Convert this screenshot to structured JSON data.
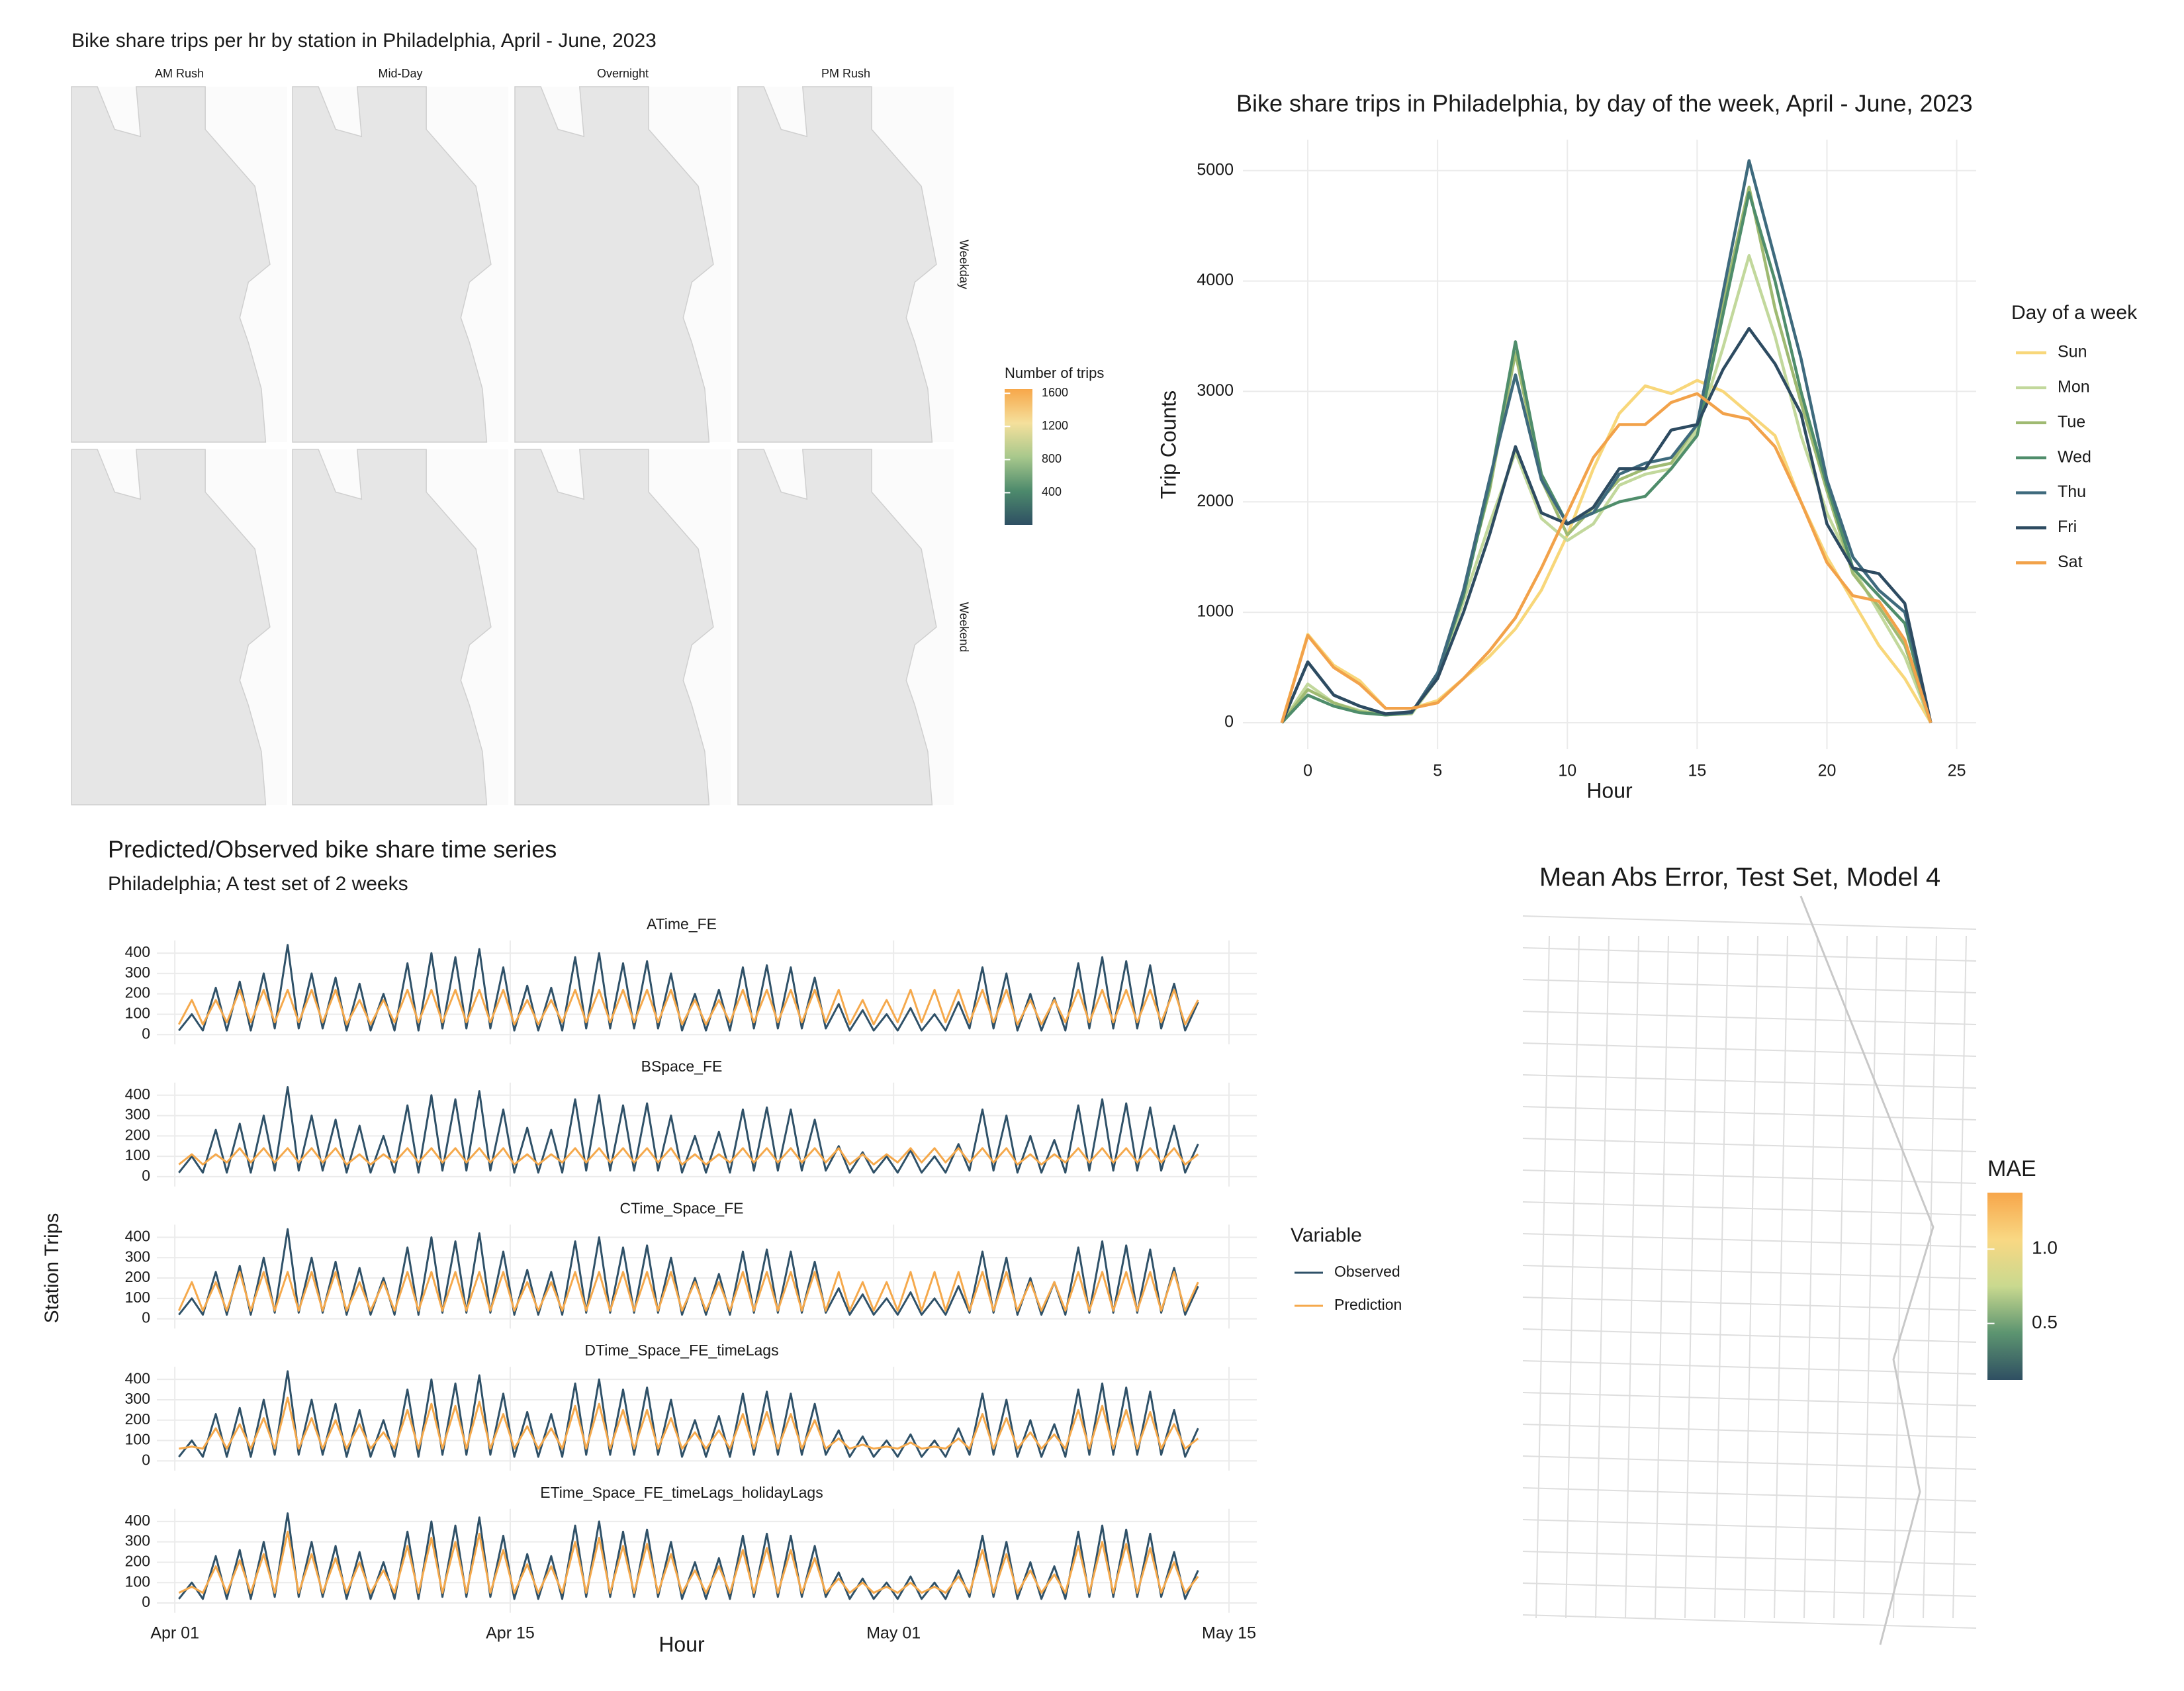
{
  "chart_data": [
    {
      "type": "map",
      "title": "Bike share trips per hr by station in Philadelphia, April - June, 2023",
      "facet_cols": [
        "AM Rush",
        "Mid-Day",
        "Overnight",
        "PM Rush"
      ],
      "facet_rows": [
        "Weekday",
        "Weekend"
      ],
      "map_color": "#e6e6e6",
      "legend_title": "Number of trips",
      "legend_ticks": [
        400,
        800,
        1200,
        1600
      ],
      "legend_lim": [
        12,
        1650
      ],
      "colors": [
        "#2e4f63",
        "#4d8a6c",
        "#a8c88c",
        "#f5e09c",
        "#f7a74a"
      ]
    },
    {
      "type": "line",
      "title": "Bike share trips in Philadelphia, by day of the week, April - June, 2023",
      "xlabel": "Hour",
      "ylabel": "Trip Counts",
      "legend_title": "Day of a week",
      "legend": "right",
      "grid": true,
      "xlim": [
        -2.5,
        25.75
      ],
      "ylim": [
        -240,
        5280
      ],
      "xticks": [
        0,
        5,
        10,
        15,
        20,
        25
      ],
      "yticks": [
        0,
        1000,
        2000,
        3000,
        4000,
        5000
      ],
      "x": [
        -1,
        0,
        1,
        2,
        3,
        4,
        5,
        6,
        7,
        8,
        9,
        10,
        11,
        12,
        13,
        14,
        15,
        16,
        17,
        18,
        19,
        20,
        21,
        22,
        23,
        24
      ],
      "series": [
        {
          "name": "Sun",
          "color": "#f8d77a",
          "values": [
            0,
            800,
            520,
            380,
            130,
            130,
            200,
            400,
            600,
            850,
            1200,
            1700,
            2300,
            2800,
            3050,
            2980,
            3100,
            3000,
            2800,
            2600,
            2000,
            1500,
            1100,
            700,
            400,
            0
          ]
        },
        {
          "name": "Mon",
          "color": "#c2d89c",
          "values": [
            0,
            350,
            180,
            110,
            70,
            80,
            400,
            1100,
            1800,
            2450,
            1850,
            1650,
            1800,
            2150,
            2250,
            2300,
            2650,
            3400,
            4230,
            3500,
            2600,
            1900,
            1400,
            1000,
            600,
            0
          ]
        },
        {
          "name": "Tue",
          "color": "#9fba72",
          "values": [
            0,
            300,
            180,
            100,
            70,
            90,
            430,
            1200,
            2100,
            3350,
            2200,
            1700,
            1950,
            2200,
            2300,
            2350,
            2700,
            3800,
            4850,
            3750,
            2900,
            2100,
            1350,
            1050,
            700,
            0
          ]
        },
        {
          "name": "Wed",
          "color": "#4f8d6b",
          "values": [
            0,
            250,
            150,
            90,
            70,
            90,
            440,
            1150,
            2150,
            3450,
            2250,
            1800,
            1900,
            2000,
            2050,
            2300,
            2600,
            3700,
            4800,
            4000,
            3000,
            2150,
            1400,
            1150,
            900,
            0
          ]
        },
        {
          "name": "Thu",
          "color": "#3e6a7d",
          "values": [
            0,
            550,
            250,
            150,
            80,
            90,
            450,
            1200,
            2200,
            3150,
            2200,
            1800,
            1900,
            2250,
            2350,
            2400,
            2700,
            3900,
            5090,
            4200,
            3300,
            2200,
            1500,
            1200,
            1000,
            0
          ]
        },
        {
          "name": "Fri",
          "color": "#2d4b61",
          "values": [
            0,
            550,
            250,
            150,
            80,
            100,
            400,
            1000,
            1700,
            2500,
            1900,
            1800,
            1950,
            2300,
            2300,
            2650,
            2700,
            3200,
            3570,
            3250,
            2800,
            1800,
            1400,
            1350,
            1080,
            0
          ]
        },
        {
          "name": "Sat",
          "color": "#f2a24a",
          "values": [
            0,
            790,
            500,
            350,
            130,
            130,
            180,
            400,
            650,
            950,
            1400,
            1900,
            2400,
            2700,
            2700,
            2900,
            2980,
            2800,
            2750,
            2500,
            2000,
            1450,
            1150,
            1100,
            750,
            0
          ]
        }
      ]
    },
    {
      "type": "facet_line",
      "title": "Predicted/Observed bike share time series",
      "subtitle": "Philadelphia; A test set of 2 weeks",
      "xlabel": "Hour",
      "ylabel": "Station Trips",
      "legend_title": "Variable",
      "grid": true,
      "xlim": [
        -0.75,
        45.16
      ],
      "ylim": [
        -48,
        462
      ],
      "xticks": [
        {
          "value": 0,
          "label": "Apr 01"
        },
        {
          "value": 14,
          "label": "Apr 15"
        },
        {
          "value": 30,
          "label": "May 01"
        },
        {
          "value": 44,
          "label": "May 15"
        }
      ],
      "yticks": [
        0,
        100,
        200,
        300,
        400
      ],
      "x": [
        0.17,
        0.71,
        1.17,
        1.71,
        2.17,
        2.71,
        3.17,
        3.71,
        4.17,
        4.71,
        5.17,
        5.71,
        6.17,
        6.71,
        7.17,
        7.71,
        8.17,
        8.71,
        9.17,
        9.71,
        10.17,
        10.71,
        11.17,
        11.71,
        12.17,
        12.71,
        13.17,
        13.71,
        14.17,
        14.71,
        15.17,
        15.71,
        16.17,
        16.71,
        17.17,
        17.71,
        18.17,
        18.71,
        19.17,
        19.71,
        20.17,
        20.71,
        21.17,
        21.71,
        22.17,
        22.71,
        23.17,
        23.71,
        24.17,
        24.71,
        25.17,
        25.71,
        26.17,
        26.71,
        27.17,
        27.71,
        28.17,
        28.71,
        29.17,
        29.71,
        30.17,
        30.71,
        31.17,
        31.71,
        32.17,
        32.71,
        33.17,
        33.71,
        34.17,
        34.71,
        35.17,
        35.71,
        36.17,
        36.71,
        37.17,
        37.71,
        38.17,
        38.71,
        39.17,
        39.71,
        40.17,
        40.71,
        41.17,
        41.71,
        42.17,
        42.71
      ],
      "observed": {
        "name": "Observed",
        "color": "#2f5168",
        "values": [
          20,
          100,
          20,
          230,
          20,
          260,
          20,
          300,
          30,
          440,
          30,
          300,
          30,
          280,
          20,
          250,
          20,
          200,
          20,
          350,
          20,
          400,
          30,
          380,
          30,
          420,
          30,
          330,
          20,
          240,
          20,
          230,
          20,
          380,
          30,
          400,
          30,
          350,
          30,
          360,
          30,
          300,
          20,
          200,
          20,
          220,
          20,
          330,
          30,
          340,
          30,
          330,
          30,
          280,
          30,
          150,
          20,
          120,
          20,
          100,
          20,
          130,
          20,
          100,
          20,
          160,
          30,
          330,
          30,
          300,
          20,
          200,
          20,
          180,
          20,
          350,
          30,
          380,
          30,
          360,
          30,
          340,
          30,
          250,
          20,
          160
        ]
      },
      "prediction": {
        "name": "Prediction",
        "color": "#f5a94c"
      },
      "panels": [
        {
          "title": "ATime_FE",
          "values": [
            50,
            170,
            50,
            170,
            60,
            220,
            60,
            220,
            60,
            220,
            60,
            220,
            60,
            220,
            50,
            170,
            50,
            170,
            60,
            220,
            60,
            220,
            60,
            220,
            60,
            220,
            60,
            220,
            50,
            170,
            50,
            170,
            60,
            220,
            60,
            220,
            60,
            220,
            60,
            220,
            60,
            220,
            50,
            170,
            50,
            170,
            60,
            220,
            60,
            220,
            60,
            220,
            60,
            220,
            60,
            220,
            50,
            170,
            50,
            170,
            60,
            220,
            60,
            220,
            60,
            220,
            60,
            220,
            60,
            220,
            50,
            170,
            50,
            170,
            60,
            220,
            60,
            220,
            60,
            220,
            60,
            220,
            60,
            220,
            50,
            170
          ]
        },
        {
          "title": "BSpace_FE",
          "values": [
            60,
            110,
            60,
            110,
            70,
            140,
            70,
            140,
            70,
            140,
            70,
            140,
            70,
            140,
            60,
            110,
            60,
            110,
            70,
            140,
            70,
            140,
            70,
            140,
            70,
            140,
            70,
            140,
            60,
            110,
            60,
            110,
            70,
            140,
            70,
            140,
            70,
            140,
            70,
            140,
            70,
            140,
            60,
            110,
            60,
            110,
            70,
            140,
            70,
            140,
            70,
            140,
            70,
            140,
            70,
            140,
            60,
            110,
            60,
            110,
            70,
            140,
            70,
            140,
            70,
            140,
            70,
            140,
            70,
            140,
            60,
            110,
            60,
            110,
            70,
            140,
            70,
            140,
            70,
            140,
            70,
            140,
            70,
            140,
            60,
            110
          ]
        },
        {
          "title": "CTime_Space_FE",
          "values": [
            40,
            180,
            40,
            180,
            40,
            230,
            40,
            230,
            40,
            230,
            40,
            230,
            40,
            230,
            40,
            180,
            40,
            180,
            40,
            230,
            40,
            230,
            40,
            230,
            40,
            230,
            40,
            230,
            40,
            180,
            40,
            180,
            40,
            230,
            40,
            230,
            40,
            230,
            40,
            230,
            40,
            230,
            40,
            180,
            40,
            180,
            40,
            230,
            40,
            230,
            40,
            230,
            40,
            230,
            40,
            230,
            40,
            180,
            40,
            180,
            40,
            230,
            40,
            230,
            40,
            230,
            40,
            230,
            40,
            230,
            40,
            180,
            40,
            180,
            40,
            230,
            40,
            230,
            40,
            230,
            40,
            230,
            40,
            230,
            40,
            180
          ]
        },
        {
          "title": "DTime_Space_FE_timeLags",
          "values": [
            60,
            70,
            60,
            160,
            60,
            180,
            60,
            210,
            60,
            310,
            60,
            210,
            60,
            200,
            60,
            180,
            60,
            140,
            60,
            250,
            60,
            280,
            60,
            270,
            60,
            290,
            60,
            230,
            60,
            170,
            60,
            160,
            60,
            270,
            60,
            280,
            60,
            250,
            60,
            250,
            60,
            210,
            60,
            140,
            60,
            150,
            60,
            230,
            60,
            240,
            60,
            230,
            60,
            200,
            60,
            110,
            60,
            80,
            60,
            70,
            60,
            90,
            60,
            70,
            60,
            110,
            60,
            230,
            60,
            210,
            60,
            140,
            60,
            130,
            60,
            250,
            60,
            270,
            60,
            250,
            60,
            240,
            60,
            180,
            60,
            110
          ]
        },
        {
          "title": "ETime_Space_FE_timeLags_holidayLags",
          "values": [
            50,
            80,
            50,
            180,
            50,
            210,
            50,
            240,
            50,
            350,
            50,
            240,
            50,
            220,
            50,
            200,
            50,
            160,
            50,
            280,
            50,
            320,
            50,
            300,
            50,
            340,
            50,
            260,
            50,
            190,
            50,
            180,
            50,
            300,
            50,
            320,
            50,
            280,
            50,
            290,
            50,
            240,
            50,
            160,
            50,
            180,
            50,
            260,
            50,
            270,
            50,
            260,
            50,
            220,
            50,
            120,
            50,
            100,
            50,
            80,
            50,
            100,
            50,
            80,
            50,
            130,
            50,
            260,
            50,
            240,
            50,
            160,
            50,
            140,
            50,
            280,
            50,
            300,
            50,
            290,
            50,
            270,
            50,
            200,
            50,
            130
          ]
        }
      ]
    },
    {
      "type": "map",
      "title": "Mean Abs Error, Test Set, Model 4",
      "legend_title": "MAE",
      "legend_ticks": [
        0.5,
        {
          "value": 1,
          "label": "1.0"
        }
      ],
      "legend_lim": [
        0.12,
        1.38
      ],
      "colors": [
        "#2f4f62",
        "#5c9470",
        "#c9d98f",
        "#f9d883",
        "#f7a64a"
      ]
    }
  ]
}
